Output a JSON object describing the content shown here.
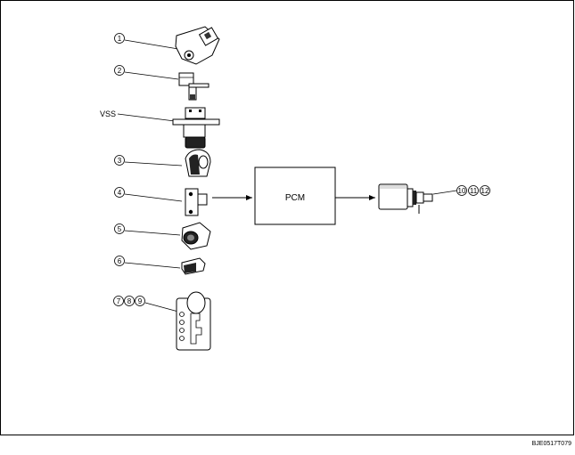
{
  "diagram": {
    "center_block": "PCM",
    "vss_label": "VSS",
    "image_code": "BJE0517T079",
    "inputs": [
      {
        "id": "1",
        "labels": [
          "1"
        ]
      },
      {
        "id": "2",
        "labels": [
          "2"
        ]
      },
      {
        "id": "3",
        "labels": [
          "3"
        ]
      },
      {
        "id": "4",
        "labels": [
          "4"
        ]
      },
      {
        "id": "5",
        "labels": [
          "5"
        ]
      },
      {
        "id": "6",
        "labels": [
          "6"
        ]
      },
      {
        "id": "789",
        "labels": [
          "7",
          "8",
          "9"
        ]
      }
    ],
    "output_labels": [
      "10",
      "11",
      "12"
    ]
  },
  "colors": {
    "stroke": "#000000",
    "fill_dark": "#222222",
    "fill_gray": "#cfcfcf",
    "background": "#ffffff"
  }
}
